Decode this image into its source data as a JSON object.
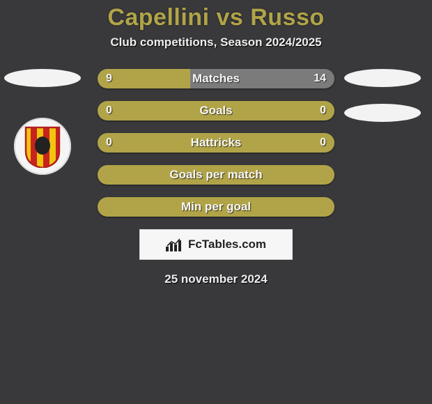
{
  "title": "Capellini vs Russo",
  "title_color": "#b1a448",
  "title_fontsize": 34,
  "subtitle": "Club competitions, Season 2024/2025",
  "subtitle_fontsize": 17,
  "date": "25 november 2024",
  "background_color": "#39393b",
  "text_color": "#ffffff",
  "brand": {
    "name": "FcTables.com"
  },
  "colors": {
    "left": "#b1a448",
    "right": "#7b7b7b",
    "bg": "#b1a448"
  },
  "crest": {
    "stripe_red": "#c8231e",
    "stripe_yellow": "#f1c40f",
    "outline": "#b32120",
    "center_fill": "#222222"
  },
  "rows": [
    {
      "label": "Matches",
      "left_val": "9",
      "right_val": "14",
      "left_pct": 39,
      "right_pct": 61
    },
    {
      "label": "Goals",
      "left_val": "0",
      "right_val": "0",
      "left_pct": 50,
      "right_pct": 50,
      "use_bg": true
    },
    {
      "label": "Hattricks",
      "left_val": "0",
      "right_val": "0",
      "left_pct": 50,
      "right_pct": 50,
      "use_bg": true
    },
    {
      "label": "Goals per match",
      "left_val": "",
      "right_val": "",
      "left_pct": 50,
      "right_pct": 50,
      "use_bg": true
    },
    {
      "label": "Min per goal",
      "left_val": "",
      "right_val": "",
      "left_pct": 50,
      "right_pct": 50,
      "use_bg": true
    }
  ]
}
